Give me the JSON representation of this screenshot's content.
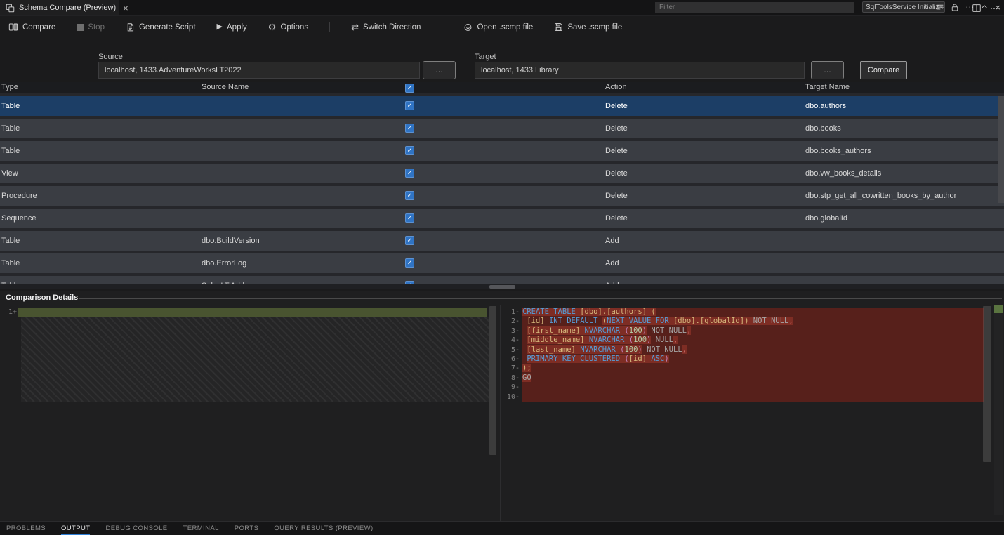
{
  "tab": {
    "title": "Schema Compare (Preview)"
  },
  "toolbar": {
    "items": [
      {
        "id": "compare",
        "label": "Compare",
        "icon": "compare"
      },
      {
        "id": "stop",
        "label": "Stop",
        "icon": "stop",
        "disabled": true
      },
      {
        "id": "generate-script",
        "label": "Generate Script",
        "icon": "generate-script"
      },
      {
        "id": "apply",
        "label": "Apply",
        "icon": "apply"
      },
      {
        "id": "options",
        "label": "Options",
        "icon": "options",
        "divider_after": true
      },
      {
        "id": "switch-direction",
        "label": "Switch Direction",
        "icon": "switch-direction",
        "divider_after": true
      },
      {
        "id": "open-scmp",
        "label": "Open .scmp file",
        "icon": "open-scmp"
      },
      {
        "id": "save-scmp",
        "label": "Save .scmp file",
        "icon": "save-scmp"
      }
    ]
  },
  "connections": {
    "source": {
      "label": "Source",
      "value": "localhost, 1433.AdventureWorksLT2022",
      "browse_label": "…"
    },
    "target": {
      "label": "Target",
      "value": "localhost, 1433.Library",
      "browse_label": "…"
    },
    "compare_button": "Compare"
  },
  "grid": {
    "columns": {
      "type": "Type",
      "source": "Source Name",
      "action": "Action",
      "target": "Target Name"
    },
    "header_checked": true,
    "rows": [
      {
        "type": "Table",
        "source": "",
        "checked": true,
        "action": "Delete",
        "target": "dbo.authors",
        "selected": true
      },
      {
        "type": "Table",
        "source": "",
        "checked": true,
        "action": "Delete",
        "target": "dbo.books"
      },
      {
        "type": "Table",
        "source": "",
        "checked": true,
        "action": "Delete",
        "target": "dbo.books_authors"
      },
      {
        "type": "View",
        "source": "",
        "checked": true,
        "action": "Delete",
        "target": "dbo.vw_books_details"
      },
      {
        "type": "Procedure",
        "source": "",
        "checked": true,
        "action": "Delete",
        "target": "dbo.stp_get_all_cowritten_books_by_author"
      },
      {
        "type": "Sequence",
        "source": "",
        "checked": true,
        "action": "Delete",
        "target": "dbo.globalId"
      },
      {
        "type": "Table",
        "source": "dbo.BuildVersion",
        "checked": true,
        "action": "Add",
        "target": ""
      },
      {
        "type": "Table",
        "source": "dbo.ErrorLog",
        "checked": true,
        "action": "Add",
        "target": ""
      },
      {
        "type": "Table",
        "source": "SalesLT.Address",
        "checked": true,
        "action": "Add",
        "target": ""
      }
    ]
  },
  "details": {
    "title": "Comparison Details",
    "left_lines": [
      {
        "num": "1",
        "marker": "+",
        "kind": "added"
      }
    ],
    "right_lines": [
      {
        "num": "1",
        "marker": "-",
        "segs": [
          {
            "t": "CREATE TABLE ",
            "c": "kw",
            "h": true
          },
          {
            "t": "[dbo].[authors] (",
            "c": "id",
            "h": true
          }
        ]
      },
      {
        "num": "2",
        "marker": "-",
        "segs": [
          {
            "t": " ",
            "c": "pl"
          },
          {
            "t": "[id]",
            "c": "id"
          },
          {
            "t": " ",
            "c": "pl"
          },
          {
            "t": "INT DEFAULT ",
            "c": "kw"
          },
          {
            "t": "(",
            "c": "id",
            "h": true
          },
          {
            "t": "NEXT VALUE FOR ",
            "c": "kw",
            "h": true
          },
          {
            "t": "[dbo].[globalId]",
            "c": "id",
            "h": true
          },
          {
            "t": ")",
            "c": "id",
            "h": true
          },
          {
            "t": " ",
            "c": "pl",
            "h": true
          },
          {
            "t": "NOT NULL",
            "c": "gr",
            "h": true
          },
          {
            "t": ",",
            "c": "cm",
            "h": true
          }
        ]
      },
      {
        "num": "3",
        "marker": "-",
        "segs": [
          {
            "t": " ",
            "c": "pl"
          },
          {
            "t": "[first_name]",
            "c": "id",
            "h": true
          },
          {
            "t": " ",
            "c": "pl",
            "h": true
          },
          {
            "t": "NVARCHAR ",
            "c": "kw",
            "h": true
          },
          {
            "t": "(",
            "c": "pr",
            "h": true
          },
          {
            "t": "100",
            "c": "nm",
            "h": true
          },
          {
            "t": ")",
            "c": "pr",
            "h": true
          },
          {
            "t": " ",
            "c": "pl"
          },
          {
            "t": "NOT NULL",
            "c": "gr"
          },
          {
            "t": ",",
            "c": "cm",
            "h": true
          }
        ]
      },
      {
        "num": "4",
        "marker": "-",
        "segs": [
          {
            "t": " ",
            "c": "pl"
          },
          {
            "t": "[middle_name]",
            "c": "id",
            "h": true
          },
          {
            "t": " ",
            "c": "pl",
            "h": true
          },
          {
            "t": "NVARCHAR ",
            "c": "kw",
            "h": true
          },
          {
            "t": "(",
            "c": "pr",
            "h": true
          },
          {
            "t": "100",
            "c": "nm",
            "h": true
          },
          {
            "t": ")",
            "c": "pr",
            "h": true
          },
          {
            "t": " ",
            "c": "pl"
          },
          {
            "t": "NULL",
            "c": "gr"
          },
          {
            "t": ",",
            "c": "cm",
            "h": true
          }
        ]
      },
      {
        "num": "5",
        "marker": "-",
        "segs": [
          {
            "t": " ",
            "c": "pl"
          },
          {
            "t": "[last_name]",
            "c": "id",
            "h": true
          },
          {
            "t": " ",
            "c": "pl",
            "h": true
          },
          {
            "t": "NVARCHAR ",
            "c": "kw",
            "h": true
          },
          {
            "t": "(",
            "c": "pr",
            "h": true
          },
          {
            "t": "100",
            "c": "nm",
            "h": true
          },
          {
            "t": ")",
            "c": "pr",
            "h": true
          },
          {
            "t": " ",
            "c": "pl"
          },
          {
            "t": "NOT NULL",
            "c": "gr"
          },
          {
            "t": ",",
            "c": "cm",
            "h": true
          }
        ]
      },
      {
        "num": "6",
        "marker": "-",
        "segs": [
          {
            "t": " ",
            "c": "pl"
          },
          {
            "t": "PRIMARY KEY CLUSTERED ",
            "c": "kw",
            "h": true
          },
          {
            "t": "(",
            "c": "pr",
            "h": true
          },
          {
            "t": "[id]",
            "c": "id",
            "h": true
          },
          {
            "t": " ",
            "c": "pl",
            "h": true
          },
          {
            "t": "ASC",
            "c": "kw",
            "h": true
          },
          {
            "t": ")",
            "c": "pr",
            "h": true
          }
        ]
      },
      {
        "num": "7",
        "marker": "-",
        "segs": [
          {
            "t": ");",
            "c": "id",
            "h": true
          }
        ]
      },
      {
        "num": "8",
        "marker": "-",
        "segs": [
          {
            "t": "GO",
            "c": "gr",
            "h": true
          }
        ]
      },
      {
        "num": "9",
        "marker": "-",
        "segs": []
      },
      {
        "num": "10",
        "marker": "-",
        "segs": []
      }
    ]
  },
  "panel": {
    "tabs": [
      {
        "label": "PROBLEMS"
      },
      {
        "label": "OUTPUT",
        "active": true
      },
      {
        "label": "DEBUG CONSOLE"
      },
      {
        "label": "TERMINAL"
      },
      {
        "label": "PORTS"
      },
      {
        "label": "QUERY RESULTS (PREVIEW)"
      }
    ],
    "filter_placeholder": "Filter",
    "channel_selector": "SqlToolsService Initializ",
    "action_icons": [
      "clear-output",
      "lock",
      "more",
      "chevron-up",
      "close"
    ]
  },
  "colors": {
    "accent": "#2f7fd6",
    "selection": "#1c3e66",
    "checkbox": "#3074c4",
    "diff_removed_line": "#57201b",
    "diff_removed_char": "#7e2d24",
    "diff_added_line": "#495430"
  }
}
